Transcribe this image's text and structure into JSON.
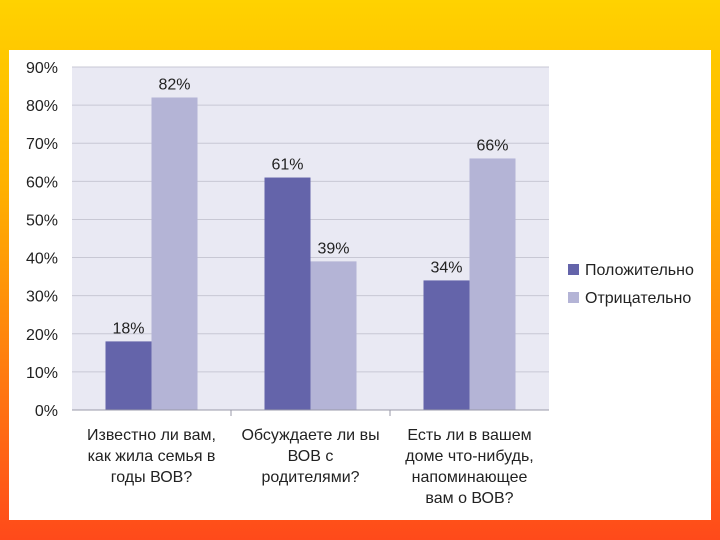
{
  "chart_data": {
    "type": "bar",
    "categories": [
      [
        "Известно ли вам,",
        "как жила семья в",
        "годы ВОВ?"
      ],
      [
        "Обсуждаете ли вы",
        "ВОВ с",
        "родителями?"
      ],
      [
        "Есть ли в вашем",
        "доме что-нибудь,",
        "напоминающее",
        "вам о ВОВ?"
      ]
    ],
    "series": [
      {
        "name": "Положительно",
        "values": [
          18,
          61,
          34
        ],
        "labels": [
          "18%",
          "61%",
          "34%"
        ],
        "color": "#6464aa"
      },
      {
        "name": "Отрицательно",
        "values": [
          82,
          39,
          66
        ],
        "labels": [
          "82%",
          "39%",
          "66%"
        ],
        "color": "#b4b4d6"
      }
    ],
    "y_ticks": [
      "0%",
      "10%",
      "20%",
      "30%",
      "40%",
      "50%",
      "60%",
      "70%",
      "80%",
      "90%"
    ],
    "ylim": [
      0,
      90
    ],
    "grid": true,
    "legend_position": "right",
    "plot_background": "#e9e9f3",
    "grid_color": "#c8c8d4"
  }
}
